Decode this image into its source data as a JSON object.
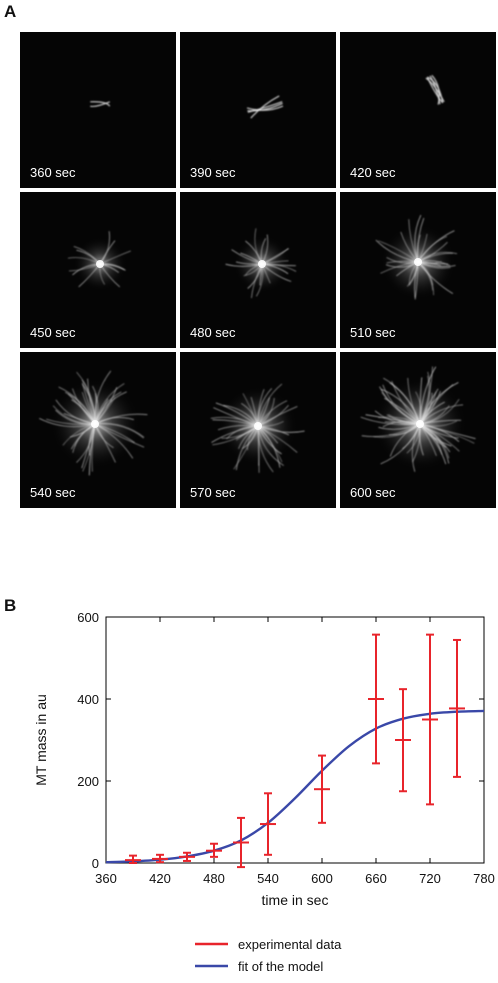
{
  "panels": {
    "a_label": "A",
    "b_label": "B"
  },
  "micrographs": [
    {
      "label": "360 sec",
      "stage": 0
    },
    {
      "label": "390 sec",
      "stage": 1
    },
    {
      "label": "420 sec",
      "stage": 2
    },
    {
      "label": "450 sec",
      "stage": 3
    },
    {
      "label": "480 sec",
      "stage": 4
    },
    {
      "label": "510 sec",
      "stage": 5
    },
    {
      "label": "540 sec",
      "stage": 6
    },
    {
      "label": "570 sec",
      "stage": 7
    },
    {
      "label": "600 sec",
      "stage": 8
    }
  ],
  "chart_data": {
    "type": "line",
    "xlabel": "time in sec",
    "ylabel": "MT mass in au",
    "xlim": [
      360,
      780
    ],
    "ylim": [
      0,
      600
    ],
    "xticks": [
      360,
      420,
      480,
      540,
      600,
      660,
      720,
      780
    ],
    "yticks": [
      0,
      200,
      400,
      600
    ],
    "legend_position": "bottom-center",
    "series": [
      {
        "name": "experimental data",
        "kind": "errorbar",
        "color": "#e8242b",
        "points": [
          {
            "x": 390,
            "y": 7,
            "lo": 0,
            "hi": 18
          },
          {
            "x": 420,
            "y": 10,
            "lo": 2,
            "hi": 20
          },
          {
            "x": 450,
            "y": 15,
            "lo": 5,
            "hi": 25
          },
          {
            "x": 480,
            "y": 30,
            "lo": 15,
            "hi": 47
          },
          {
            "x": 510,
            "y": 50,
            "lo": -10,
            "hi": 110
          },
          {
            "x": 540,
            "y": 95,
            "lo": 20,
            "hi": 170
          },
          {
            "x": 600,
            "y": 180,
            "lo": 98,
            "hi": 262
          },
          {
            "x": 660,
            "y": 400,
            "lo": 243,
            "hi": 557
          },
          {
            "x": 690,
            "y": 300,
            "lo": 175,
            "hi": 424
          },
          {
            "x": 720,
            "y": 350,
            "lo": 143,
            "hi": 557
          },
          {
            "x": 750,
            "y": 377,
            "lo": 210,
            "hi": 544
          }
        ]
      },
      {
        "name": "fit of the model",
        "kind": "line",
        "color": "#3a48a8",
        "points": [
          {
            "x": 360,
            "y": 2
          },
          {
            "x": 390,
            "y": 4
          },
          {
            "x": 420,
            "y": 8
          },
          {
            "x": 450,
            "y": 16
          },
          {
            "x": 480,
            "y": 30
          },
          {
            "x": 510,
            "y": 55
          },
          {
            "x": 540,
            "y": 98
          },
          {
            "x": 570,
            "y": 158
          },
          {
            "x": 600,
            "y": 225
          },
          {
            "x": 630,
            "y": 285
          },
          {
            "x": 660,
            "y": 328
          },
          {
            "x": 690,
            "y": 352
          },
          {
            "x": 720,
            "y": 364
          },
          {
            "x": 750,
            "y": 369
          },
          {
            "x": 780,
            "y": 371
          }
        ]
      }
    ]
  }
}
